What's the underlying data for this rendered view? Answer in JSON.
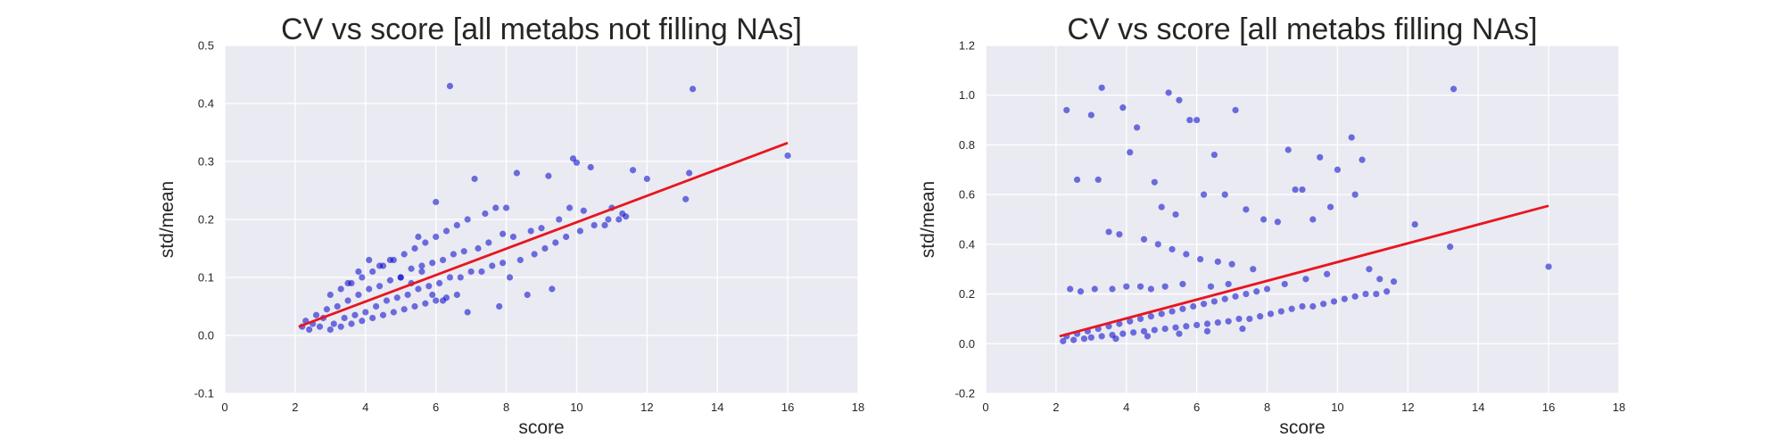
{
  "chart_data": [
    {
      "type": "scatter",
      "title": "CV vs score [all metabs not filling NAs]",
      "xlabel": "score",
      "ylabel": "std/mean",
      "xlim": [
        0,
        18
      ],
      "ylim": [
        -0.1,
        0.5
      ],
      "xticks": [
        "0",
        "2",
        "4",
        "6",
        "8",
        "10",
        "12",
        "14",
        "16",
        "18"
      ],
      "yticks": [
        "-0.1",
        "0.0",
        "0.1",
        "0.2",
        "0.3",
        "0.4",
        "0.5"
      ],
      "grid": true,
      "style": "seaborn-darkgrid",
      "colors": {
        "background": "#EAEAF2",
        "grid": "#FFFFFF",
        "points": "#0000CC",
        "fit_line": "#E8161E"
      },
      "fit_line": {
        "x": [
          2.1,
          16.0
        ],
        "y": [
          0.015,
          0.332
        ]
      },
      "series": [
        {
          "x": [
            6.4,
            13.3,
            16.0,
            9.9,
            10.0,
            8.3,
            9.2,
            10.4,
            13.2,
            12.0,
            11.6,
            13.1,
            11.0,
            7.1,
            6.0,
            9.8,
            10.2,
            11.2,
            11.4,
            10.8,
            9.5,
            9.0,
            8.7,
            8.2,
            7.9,
            7.5,
            7.2,
            6.8,
            6.5,
            6.2,
            5.9,
            5.6,
            5.3,
            5.0,
            4.7,
            4.4,
            4.1,
            3.8,
            3.5,
            3.2,
            2.9,
            2.6,
            2.3,
            2.2,
            2.5,
            2.8,
            3.1,
            3.4,
            3.7,
            4.0,
            4.3,
            4.6,
            4.9,
            5.2,
            5.5,
            5.8,
            6.1,
            6.4,
            6.7,
            7.0,
            7.3,
            7.6,
            7.9,
            8.1,
            8.4,
            8.8,
            9.1,
            9.4,
            9.7,
            10.1,
            10.5,
            10.9,
            11.3,
            3.0,
            3.3,
            3.6,
            3.9,
            4.2,
            4.5,
            4.8,
            5.1,
            5.4,
            5.7,
            6.0,
            6.3,
            6.6,
            6.9,
            7.4,
            7.7,
            8.0,
            2.4,
            2.7,
            3.0,
            3.3,
            3.6,
            3.9,
            4.2,
            4.5,
            4.8,
            5.1,
            5.4,
            5.7,
            6.0,
            6.3,
            6.6,
            4.4,
            4.7,
            5.0,
            5.3,
            5.6,
            5.9,
            6.2,
            4.1,
            3.8,
            3.5,
            8.6,
            9.3,
            7.8,
            6.9,
            5.5
          ],
          "y": [
            0.43,
            0.425,
            0.31,
            0.305,
            0.298,
            0.28,
            0.275,
            0.29,
            0.28,
            0.27,
            0.285,
            0.235,
            0.22,
            0.27,
            0.23,
            0.22,
            0.215,
            0.2,
            0.205,
            0.19,
            0.2,
            0.185,
            0.18,
            0.17,
            0.175,
            0.16,
            0.15,
            0.145,
            0.14,
            0.13,
            0.125,
            0.12,
            0.115,
            0.1,
            0.095,
            0.085,
            0.08,
            0.07,
            0.06,
            0.05,
            0.045,
            0.035,
            0.025,
            0.015,
            0.02,
            0.03,
            0.02,
            0.03,
            0.035,
            0.04,
            0.05,
            0.06,
            0.065,
            0.07,
            0.08,
            0.085,
            0.09,
            0.1,
            0.1,
            0.11,
            0.11,
            0.12,
            0.125,
            0.1,
            0.13,
            0.14,
            0.15,
            0.16,
            0.17,
            0.18,
            0.19,
            0.2,
            0.21,
            0.07,
            0.08,
            0.09,
            0.1,
            0.11,
            0.12,
            0.13,
            0.14,
            0.15,
            0.16,
            0.17,
            0.18,
            0.19,
            0.2,
            0.21,
            0.22,
            0.22,
            0.01,
            0.015,
            0.01,
            0.015,
            0.02,
            0.025,
            0.03,
            0.035,
            0.04,
            0.045,
            0.05,
            0.055,
            0.06,
            0.065,
            0.07,
            0.12,
            0.13,
            0.1,
            0.09,
            0.11,
            0.07,
            0.06,
            0.13,
            0.11,
            0.09,
            0.07,
            0.08,
            0.05,
            0.04,
            0.17
          ]
        }
      ]
    },
    {
      "type": "scatter",
      "title": "CV vs score [all metabs filling NAs]",
      "xlabel": "score",
      "ylabel": "std/mean",
      "xlim": [
        0,
        18
      ],
      "ylim": [
        -0.2,
        1.2
      ],
      "xticks": [
        "0",
        "2",
        "4",
        "6",
        "8",
        "10",
        "12",
        "14",
        "16",
        "18"
      ],
      "yticks": [
        "-0.2",
        "0.0",
        "0.2",
        "0.4",
        "0.6",
        "0.8",
        "1.0",
        "1.2"
      ],
      "grid": true,
      "style": "seaborn-darkgrid",
      "colors": {
        "background": "#EAEAF2",
        "grid": "#FFFFFF",
        "points": "#0000CC",
        "fit_line": "#E8161E"
      },
      "fit_line": {
        "x": [
          2.1,
          16.0
        ],
        "y": [
          0.03,
          0.555
        ]
      },
      "series": [
        {
          "x": [
            3.3,
            13.3,
            5.2,
            2.3,
            3.0,
            3.9,
            4.3,
            5.5,
            5.8,
            6.0,
            7.1,
            10.4,
            8.6,
            9.5,
            10.0,
            10.7,
            4.1,
            4.8,
            2.6,
            3.2,
            6.5,
            8.8,
            9.0,
            10.5,
            12.2,
            13.2,
            16.0,
            11.2,
            11.6,
            10.9,
            5.0,
            5.4,
            6.2,
            6.8,
            7.4,
            7.9,
            8.3,
            9.3,
            9.8,
            3.5,
            3.8,
            4.5,
            4.9,
            5.3,
            5.7,
            6.1,
            6.6,
            7.0,
            7.6,
            2.4,
            2.7,
            3.1,
            3.6,
            4.0,
            4.4,
            4.7,
            5.1,
            5.6,
            6.4,
            6.9,
            2.2,
            2.5,
            2.8,
            3.0,
            3.3,
            3.6,
            3.9,
            4.2,
            4.5,
            4.8,
            5.1,
            5.4,
            5.7,
            6.0,
            6.3,
            6.6,
            6.9,
            7.2,
            7.5,
            7.8,
            8.1,
            8.4,
            8.7,
            9.0,
            9.3,
            9.6,
            9.9,
            10.2,
            10.5,
            10.8,
            11.1,
            11.4,
            2.3,
            2.6,
            2.9,
            3.2,
            3.5,
            3.8,
            4.1,
            4.4,
            4.7,
            5.0,
            5.3,
            5.6,
            5.9,
            6.2,
            6.5,
            6.8,
            7.1,
            7.4,
            7.7,
            8.0,
            8.5,
            9.1,
            9.7,
            3.7,
            4.6,
            5.5,
            6.3,
            7.3
          ],
          "y": [
            1.03,
            1.025,
            1.01,
            0.94,
            0.92,
            0.95,
            0.87,
            0.98,
            0.9,
            0.9,
            0.94,
            0.83,
            0.78,
            0.75,
            0.7,
            0.74,
            0.77,
            0.65,
            0.66,
            0.66,
            0.76,
            0.62,
            0.62,
            0.6,
            0.48,
            0.39,
            0.31,
            0.26,
            0.25,
            0.3,
            0.55,
            0.52,
            0.6,
            0.6,
            0.54,
            0.5,
            0.49,
            0.5,
            0.55,
            0.45,
            0.44,
            0.42,
            0.4,
            0.38,
            0.36,
            0.34,
            0.33,
            0.32,
            0.3,
            0.22,
            0.21,
            0.22,
            0.22,
            0.23,
            0.23,
            0.22,
            0.23,
            0.24,
            0.23,
            0.24,
            0.01,
            0.015,
            0.02,
            0.025,
            0.03,
            0.035,
            0.04,
            0.045,
            0.05,
            0.055,
            0.06,
            0.065,
            0.07,
            0.075,
            0.08,
            0.085,
            0.09,
            0.1,
            0.1,
            0.11,
            0.12,
            0.13,
            0.14,
            0.15,
            0.15,
            0.16,
            0.17,
            0.18,
            0.19,
            0.2,
            0.2,
            0.21,
            0.03,
            0.04,
            0.05,
            0.06,
            0.07,
            0.08,
            0.09,
            0.1,
            0.11,
            0.12,
            0.13,
            0.14,
            0.15,
            0.16,
            0.17,
            0.18,
            0.19,
            0.2,
            0.21,
            0.22,
            0.24,
            0.26,
            0.28,
            0.02,
            0.03,
            0.04,
            0.05,
            0.06
          ]
        }
      ]
    }
  ]
}
